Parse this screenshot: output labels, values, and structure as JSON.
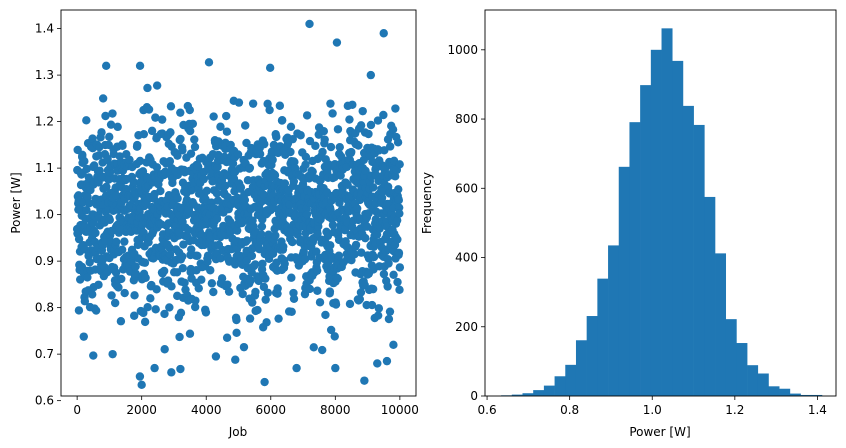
{
  "chart_data": [
    {
      "type": "scatter",
      "xlabel": "Job",
      "ylabel": "Power [W]",
      "xlim": [
        -500,
        10500
      ],
      "ylim": [
        0.61,
        1.44
      ],
      "xticks": [
        0,
        2000,
        4000,
        6000,
        8000,
        10000
      ],
      "yticks": [
        0.6,
        0.7,
        0.8,
        0.9,
        1.0,
        1.1,
        1.2,
        1.3,
        1.4
      ],
      "color": "#1f77b4",
      "n_points": 10000,
      "distribution": {
        "mean": 1.0,
        "std": 0.1
      },
      "notable_points": [
        {
          "x": 7200,
          "y": 1.41
        },
        {
          "x": 9500,
          "y": 1.39
        },
        {
          "x": 8050,
          "y": 1.37
        },
        {
          "x": 900,
          "y": 1.32
        },
        {
          "x": 1950,
          "y": 1.32
        },
        {
          "x": 9100,
          "y": 1.3
        },
        {
          "x": 2000,
          "y": 0.634
        },
        {
          "x": 8900,
          "y": 0.643
        },
        {
          "x": 2400,
          "y": 0.67
        },
        {
          "x": 3200,
          "y": 0.668
        },
        {
          "x": 6800,
          "y": 0.67
        },
        {
          "x": 8000,
          "y": 0.67
        },
        {
          "x": 500,
          "y": 0.697
        },
        {
          "x": 1100,
          "y": 0.7
        },
        {
          "x": 4300,
          "y": 0.695
        },
        {
          "x": 4900,
          "y": 0.688
        },
        {
          "x": 9300,
          "y": 0.68
        },
        {
          "x": 9600,
          "y": 0.685
        },
        {
          "x": 9800,
          "y": 0.72
        }
      ]
    },
    {
      "type": "bar",
      "xlabel": "Power [W]",
      "ylabel": "Frequency",
      "xlim": [
        0.595,
        1.445
      ],
      "ylim": [
        0,
        1115
      ],
      "xticks": [
        0.6,
        0.8,
        1.0,
        1.2,
        1.4
      ],
      "yticks": [
        0,
        200,
        400,
        600,
        800,
        1000
      ],
      "color": "#1f77b4",
      "bin_start": 0.634,
      "bin_width": 0.0259,
      "frequencies": [
        2,
        4,
        8,
        17,
        30,
        57,
        90,
        161,
        231,
        339,
        435,
        662,
        791,
        898,
        1000,
        1062,
        968,
        838,
        783,
        575,
        412,
        222,
        153,
        89,
        65,
        28,
        21,
        7,
        3,
        3
      ]
    }
  ]
}
